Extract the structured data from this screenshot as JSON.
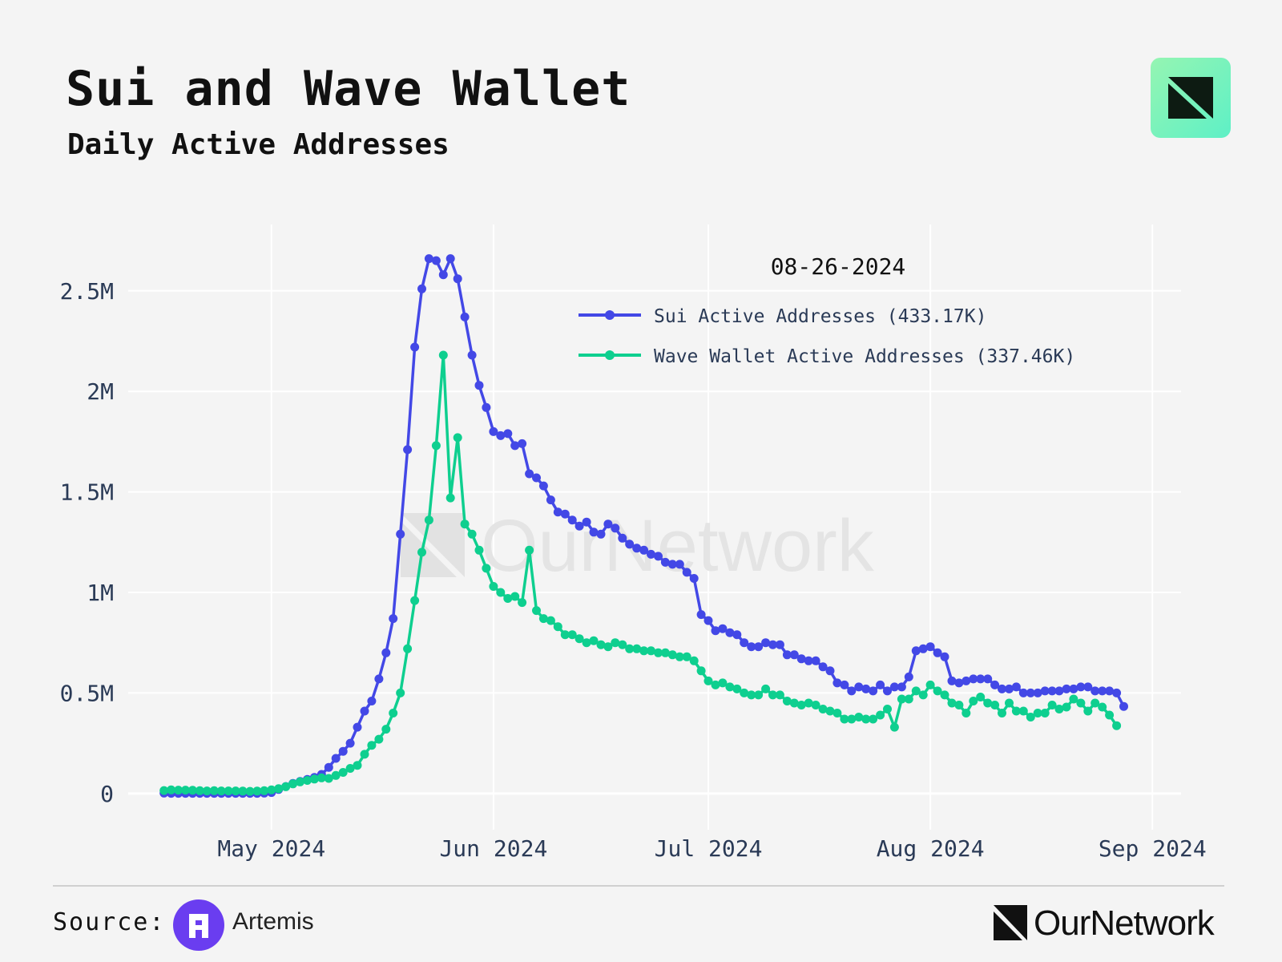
{
  "header": {
    "title": "Sui and Wave Wallet",
    "subtitle": "Daily Active Addresses"
  },
  "footer": {
    "source_label": "Source:",
    "source_name": "Artemis",
    "brand": "OurNetwork"
  },
  "watermark": "OurNetwork",
  "colors": {
    "sui": "#4348e6",
    "wave": "#0ecf8f",
    "grid": "#ffffff",
    "axis_text": "#2a3a56",
    "background": "#f4f4f4"
  },
  "chart_data": {
    "type": "line",
    "title": "Sui and Wave Wallet",
    "subtitle": "Daily Active Addresses",
    "xlabel": "",
    "ylabel": "",
    "x_start": "2024-04-16",
    "x_end": "2024-08-26",
    "x_step_days": 1,
    "x_tick_labels": [
      "May 2024",
      "Jun 2024",
      "Jul 2024",
      "Aug 2024",
      "Sep 2024"
    ],
    "x_tick_dates": [
      "2024-05-01",
      "2024-06-01",
      "2024-07-01",
      "2024-08-01",
      "2024-09-01"
    ],
    "y_tick_labels": [
      "0",
      "0.5M",
      "1M",
      "1.5M",
      "2M",
      "2.5M"
    ],
    "y_tick_values": [
      0,
      500000,
      1000000,
      1500000,
      2000000,
      2500000
    ],
    "ylim": [
      -180000,
      2830000
    ],
    "hover_date": "08-26-2024",
    "legend_position": "top-right",
    "series": [
      {
        "name": "Sui Active Addresses",
        "legend_label": "Sui Active Addresses (433.17K)",
        "color": "#4348e6",
        "values": [
          2000,
          1000,
          1000,
          1000,
          1000,
          1000,
          1000,
          1000,
          1000,
          1000,
          1000,
          1000,
          1000,
          1000,
          2000,
          5000,
          20000,
          35000,
          50000,
          60000,
          70000,
          80000,
          95000,
          130000,
          175000,
          210000,
          250000,
          330000,
          410000,
          460000,
          570000,
          700000,
          870000,
          1290000,
          1710000,
          2220000,
          2510000,
          2660000,
          2650000,
          2580000,
          2660000,
          2560000,
          2370000,
          2180000,
          2030000,
          1920000,
          1800000,
          1780000,
          1790000,
          1730000,
          1740000,
          1590000,
          1570000,
          1530000,
          1460000,
          1400000,
          1390000,
          1360000,
          1330000,
          1350000,
          1300000,
          1290000,
          1340000,
          1320000,
          1270000,
          1240000,
          1220000,
          1210000,
          1190000,
          1180000,
          1150000,
          1140000,
          1140000,
          1100000,
          1070000,
          890000,
          860000,
          810000,
          820000,
          800000,
          790000,
          750000,
          730000,
          730000,
          750000,
          740000,
          740000,
          690000,
          690000,
          670000,
          660000,
          660000,
          630000,
          610000,
          550000,
          540000,
          510000,
          530000,
          520000,
          510000,
          540000,
          510000,
          530000,
          530000,
          580000,
          710000,
          720000,
          730000,
          700000,
          680000,
          560000,
          550000,
          560000,
          570000,
          570000,
          570000,
          540000,
          520000,
          520000,
          530000,
          500000,
          500000,
          500000,
          510000,
          510000,
          510000,
          520000,
          520000,
          530000,
          530000,
          510000,
          510000,
          510000,
          500000,
          433170
        ]
      },
      {
        "name": "Wave Wallet Active Addresses",
        "legend_label": "Wave Wallet Active Addresses (337.46K)",
        "color": "#0ecf8f",
        "values": [
          15000,
          18000,
          17000,
          17000,
          16000,
          14000,
          13000,
          14000,
          13000,
          13000,
          13000,
          12000,
          11000,
          12000,
          14000,
          18000,
          24000,
          34000,
          48000,
          58000,
          65000,
          72000,
          78000,
          75000,
          90000,
          105000,
          125000,
          140000,
          195000,
          240000,
          270000,
          320000,
          400000,
          500000,
          720000,
          960000,
          1200000,
          1360000,
          1730000,
          2180000,
          1470000,
          1770000,
          1340000,
          1290000,
          1210000,
          1120000,
          1030000,
          1000000,
          970000,
          980000,
          950000,
          1210000,
          910000,
          870000,
          860000,
          830000,
          790000,
          790000,
          770000,
          750000,
          760000,
          740000,
          730000,
          750000,
          740000,
          720000,
          720000,
          710000,
          710000,
          700000,
          700000,
          690000,
          680000,
          680000,
          660000,
          610000,
          560000,
          540000,
          550000,
          530000,
          520000,
          500000,
          490000,
          490000,
          520000,
          490000,
          490000,
          460000,
          450000,
          440000,
          450000,
          440000,
          420000,
          410000,
          400000,
          370000,
          370000,
          380000,
          370000,
          370000,
          390000,
          420000,
          330000,
          470000,
          470000,
          510000,
          490000,
          540000,
          510000,
          490000,
          450000,
          440000,
          400000,
          460000,
          480000,
          450000,
          440000,
          400000,
          450000,
          410000,
          410000,
          380000,
          400000,
          400000,
          440000,
          420000,
          430000,
          470000,
          450000,
          410000,
          450000,
          430000,
          390000,
          337460
        ]
      }
    ]
  }
}
